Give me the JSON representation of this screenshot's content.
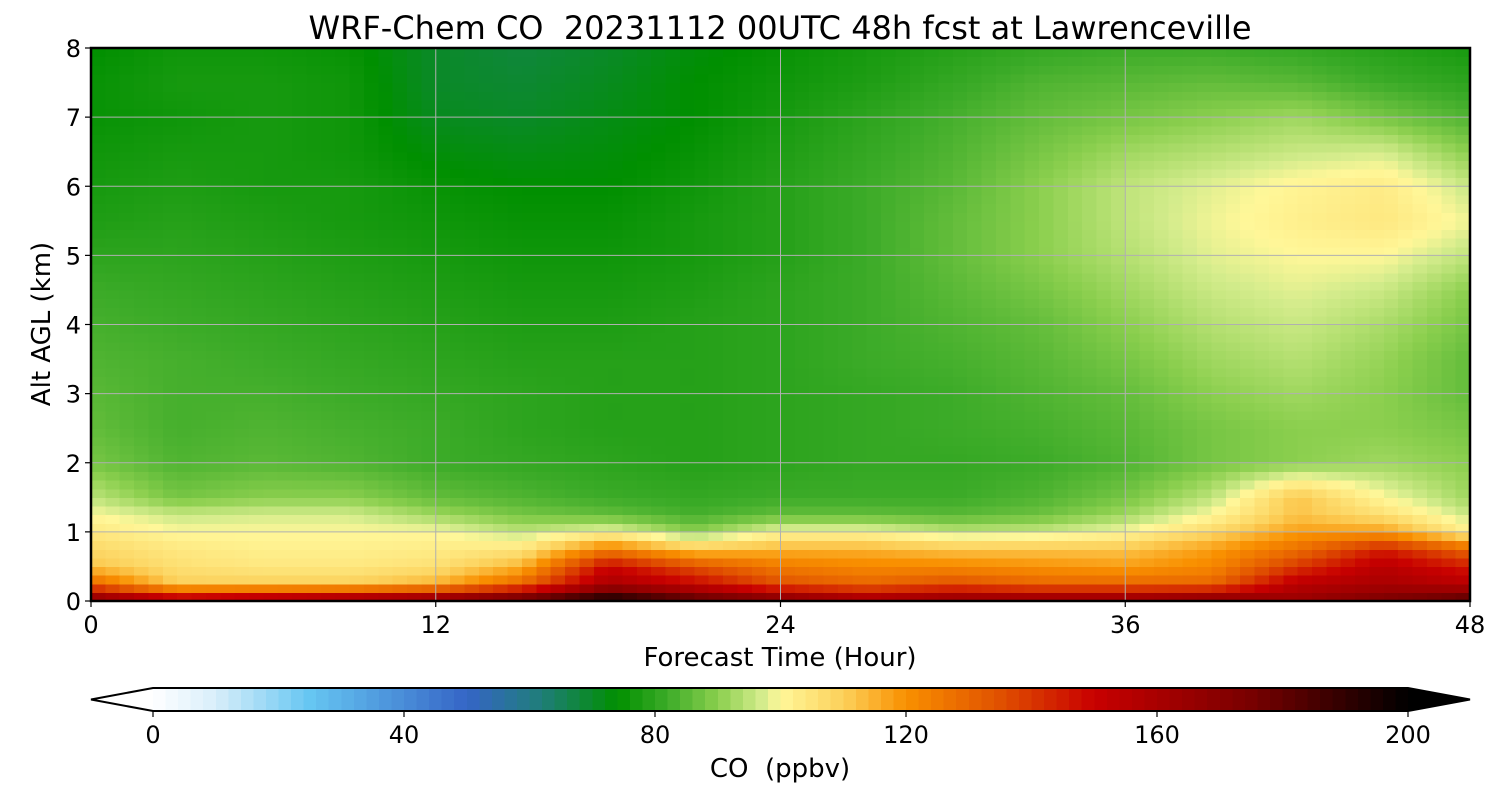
{
  "chart_data": {
    "type": "heatmap",
    "title": "WRF-Chem CO  20231112 00UTC 48h fcst at Lawrenceville",
    "xlabel": "Forecast Time (Hour)",
    "ylabel": "Alt AGL (km)",
    "xlim": [
      0,
      48
    ],
    "ylim": [
      0,
      8
    ],
    "x_ticks": [
      "0",
      "12",
      "24",
      "36",
      "48"
    ],
    "y_ticks": [
      "0",
      "1",
      "2",
      "3",
      "4",
      "5",
      "6",
      "7",
      "8"
    ],
    "grid": true,
    "x_hours": [
      0,
      3,
      6,
      9,
      12,
      15,
      18,
      21,
      24,
      27,
      30,
      33,
      36,
      39,
      42,
      45,
      48
    ],
    "y_km": [
      0,
      0.25,
      0.5,
      0.75,
      1.0,
      1.25,
      1.5,
      2,
      2.5,
      3,
      3.5,
      4,
      4.5,
      5,
      5.5,
      6,
      6.5,
      7,
      7.5,
      8
    ],
    "values": [
      [
        175,
        160,
        165,
        170,
        175,
        185,
        200,
        185,
        175,
        165,
        170,
        170,
        170,
        175,
        165,
        175,
        185
      ],
      [
        130,
        110,
        110,
        110,
        115,
        130,
        160,
        150,
        135,
        130,
        135,
        130,
        130,
        130,
        155,
        160,
        155
      ],
      [
        112,
        106,
        104,
        104,
        106,
        115,
        150,
        135,
        125,
        122,
        122,
        120,
        118,
        122,
        140,
        155,
        145
      ],
      [
        108,
        104,
        102,
        102,
        103,
        105,
        125,
        112,
        115,
        115,
        112,
        112,
        112,
        118,
        128,
        145,
        130
      ],
      [
        104,
        100,
        100,
        100,
        100,
        95,
        100,
        90,
        100,
        100,
        95,
        96,
        100,
        108,
        118,
        118,
        102
      ],
      [
        100,
        96,
        97,
        97,
        92,
        88,
        86,
        83,
        86,
        86,
        85,
        87,
        92,
        100,
        112,
        106,
        96
      ],
      [
        95,
        88,
        90,
        90,
        86,
        84,
        82,
        81,
        82,
        82,
        82,
        84,
        88,
        95,
        112,
        100,
        92
      ],
      [
        88,
        84,
        85,
        84,
        82,
        81,
        80,
        79,
        80,
        81,
        81,
        82,
        84,
        88,
        90,
        92,
        90
      ],
      [
        86,
        83,
        84,
        83,
        82,
        80,
        79,
        79,
        80,
        81,
        82,
        83,
        85,
        88,
        90,
        90,
        88
      ],
      [
        85,
        83,
        83,
        82,
        81,
        80,
        79,
        79,
        80,
        81,
        82,
        84,
        86,
        90,
        92,
        90,
        86
      ],
      [
        84,
        83,
        82,
        81,
        80,
        79,
        79,
        79,
        80,
        82,
        83,
        85,
        88,
        92,
        94,
        91,
        86
      ],
      [
        83,
        82,
        81,
        80,
        79,
        78,
        78,
        79,
        80,
        82,
        84,
        86,
        90,
        94,
        96,
        93,
        88
      ],
      [
        82,
        81,
        80,
        79,
        78,
        77,
        77,
        78,
        80,
        82,
        85,
        88,
        92,
        96,
        98,
        96,
        90
      ],
      [
        80,
        80,
        79,
        78,
        77,
        76,
        76,
        77,
        79,
        82,
        86,
        90,
        94,
        98,
        100,
        100,
        95
      ],
      [
        78,
        79,
        78,
        77,
        76,
        75,
        75,
        77,
        79,
        82,
        86,
        90,
        95,
        99,
        102,
        104,
        99
      ],
      [
        77,
        78,
        77,
        77,
        75,
        74,
        74,
        76,
        79,
        82,
        85,
        90,
        95,
        98,
        101,
        103,
        96
      ],
      [
        76,
        77,
        77,
        76,
        73,
        72,
        73,
        75,
        78,
        81,
        84,
        88,
        92,
        94,
        96,
        97,
        90
      ],
      [
        75,
        76,
        77,
        76,
        71,
        70,
        72,
        74,
        77,
        80,
        83,
        86,
        88,
        90,
        92,
        88,
        84
      ],
      [
        75,
        77,
        77,
        76,
        70,
        69,
        71,
        74,
        76,
        78,
        81,
        84,
        85,
        86,
        85,
        82,
        80
      ],
      [
        74,
        76,
        76,
        75,
        70,
        68,
        70,
        73,
        75,
        77,
        79,
        81,
        82,
        82,
        81,
        79,
        77
      ]
    ],
    "colorbar": {
      "label": "CO  (ppbv)",
      "ticks": [
        "0",
        "40",
        "80",
        "120",
        "160",
        "200"
      ],
      "range": [
        0,
        200
      ],
      "extend": "both",
      "colormap": [
        {
          "v": 0,
          "color": "#ffffff"
        },
        {
          "v": 10,
          "color": "#d8eefa"
        },
        {
          "v": 25,
          "color": "#66c6f2"
        },
        {
          "v": 50,
          "color": "#3565c6"
        },
        {
          "v": 62,
          "color": "#1f7e78"
        },
        {
          "v": 74,
          "color": "#008f00"
        },
        {
          "v": 82,
          "color": "#3cab28"
        },
        {
          "v": 90,
          "color": "#8bcf4e"
        },
        {
          "v": 97,
          "color": "#d4ec8c"
        },
        {
          "v": 100,
          "color": "#fff799"
        },
        {
          "v": 110,
          "color": "#fcd05a"
        },
        {
          "v": 120,
          "color": "#f99000"
        },
        {
          "v": 135,
          "color": "#e05000"
        },
        {
          "v": 150,
          "color": "#c80000"
        },
        {
          "v": 175,
          "color": "#780000"
        },
        {
          "v": 200,
          "color": "#000000"
        }
      ]
    }
  }
}
